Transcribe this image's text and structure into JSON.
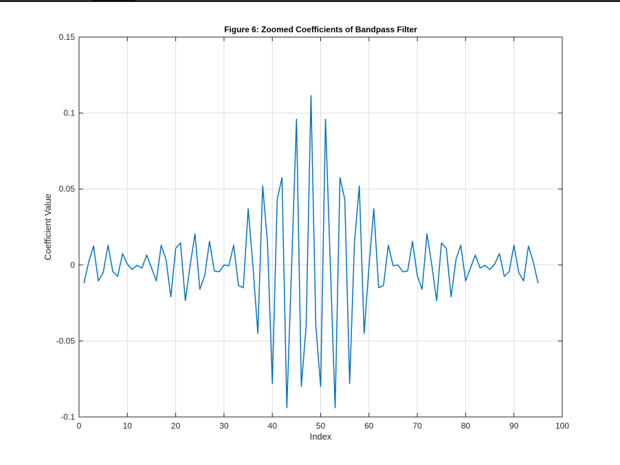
{
  "chart_data": {
    "type": "line",
    "title": "Figure 6: Zoomed Coefficients of Bandpass Filter",
    "xlabel": "Index",
    "ylabel": "Coefficient Value",
    "xlim": [
      0,
      100
    ],
    "ylim": [
      -0.1,
      0.15
    ],
    "xticks": [
      0,
      10,
      20,
      30,
      40,
      50,
      60,
      70,
      80,
      90,
      100
    ],
    "yticks": [
      -0.1,
      -0.05,
      0,
      0.05,
      0.1,
      0.15
    ],
    "xtick_labels": [
      "0",
      "10",
      "20",
      "30",
      "40",
      "50",
      "60",
      "70",
      "80",
      "90",
      "100"
    ],
    "ytick_labels": [
      "-0.1",
      "-0.05",
      "0",
      "0.05",
      "0.1",
      "0.15"
    ],
    "grid": true,
    "line_color": "#0072BD",
    "series": [
      {
        "x": [
          1,
          2,
          3,
          4,
          5,
          6,
          7,
          8,
          9,
          10,
          11,
          12,
          13,
          14,
          15,
          16,
          17,
          18,
          19,
          20,
          21,
          22,
          23,
          24,
          25,
          26,
          27,
          28,
          29,
          30,
          31,
          32,
          33,
          34,
          35,
          36,
          37,
          38,
          39,
          40,
          41,
          42,
          43,
          44,
          45,
          46,
          47,
          48,
          49,
          50,
          51,
          52,
          53,
          54,
          55,
          56,
          57,
          58,
          59,
          60,
          61,
          62,
          63,
          64,
          65,
          66,
          67,
          68,
          69,
          70,
          71,
          72,
          73,
          74,
          75,
          76,
          77,
          78,
          79,
          80,
          81,
          82,
          83,
          84,
          85,
          86,
          87,
          88,
          89,
          90,
          91,
          92,
          93,
          94,
          95
        ],
        "values": [
          -0.012,
          0.002,
          0.0125,
          -0.0105,
          -0.005,
          0.013,
          -0.0045,
          -0.0075,
          0.0075,
          0.0005,
          -0.003,
          -0.0002,
          -0.002,
          0.0065,
          -0.002,
          -0.0105,
          0.013,
          0.0035,
          -0.021,
          0.011,
          0.0145,
          -0.0235,
          0.0,
          0.0205,
          -0.016,
          -0.007,
          0.0155,
          -0.004,
          -0.0045,
          0.0,
          -0.0005,
          0.013,
          -0.0135,
          -0.015,
          0.037,
          -0.001,
          -0.045,
          0.052,
          0.015,
          -0.078,
          0.043,
          0.0575,
          -0.094,
          0.0,
          0.096,
          -0.08,
          -0.04,
          0.1115,
          -0.04,
          -0.08,
          0.096,
          0.0,
          -0.094,
          0.0575,
          0.043,
          -0.078,
          0.015,
          0.052,
          -0.045,
          -0.001,
          0.037,
          -0.015,
          -0.0135,
          0.013,
          -0.0005,
          0.0,
          -0.0045,
          -0.004,
          0.0155,
          -0.007,
          -0.016,
          0.0205,
          0.0,
          -0.0235,
          0.0145,
          0.011,
          -0.021,
          0.0035,
          0.013,
          -0.0105,
          -0.002,
          0.0065,
          -0.002,
          -0.0002,
          -0.003,
          0.0005,
          0.0075,
          -0.0075,
          -0.0045,
          0.013,
          -0.005,
          -0.0105,
          0.0125,
          0.002,
          -0.012
        ]
      }
    ]
  }
}
